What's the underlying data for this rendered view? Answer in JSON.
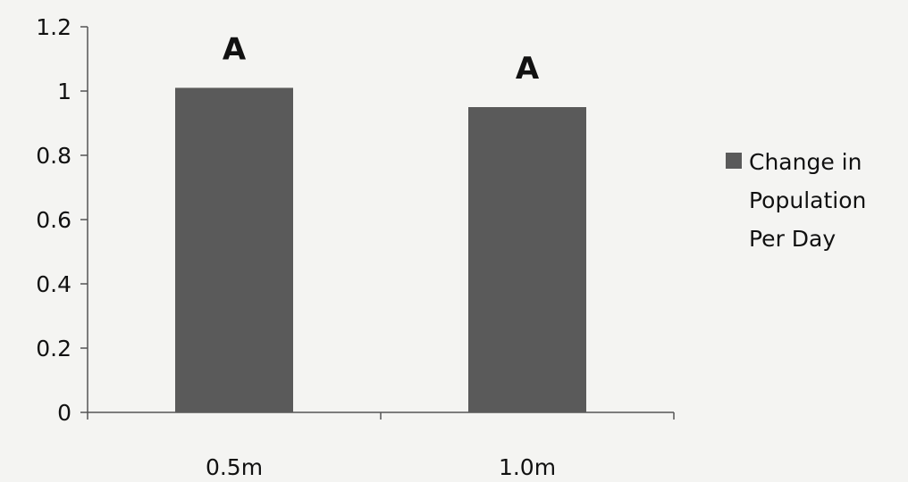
{
  "chart_data": {
    "type": "bar",
    "categories": [
      "0.5m",
      "1.0m"
    ],
    "series": [
      {
        "name": "Change in Population Per Day",
        "values": [
          1.01,
          0.95
        ]
      }
    ],
    "significance_letters": [
      "A",
      "A"
    ],
    "ylim": [
      0,
      1.2
    ],
    "yticks": [
      "0",
      "0.2",
      "0.4",
      "0.6",
      "0.8",
      "1",
      "1.2"
    ],
    "ytick_values": [
      0,
      0.2,
      0.4,
      0.6,
      0.8,
      1.0,
      1.2
    ],
    "grid": false,
    "legend_position": "right",
    "legend_lines": [
      "Change in",
      "Population",
      "Per Day"
    ],
    "colors": {
      "bar": "#5a5a5a",
      "axis": "#555555",
      "background": "#f4f4f2"
    }
  }
}
